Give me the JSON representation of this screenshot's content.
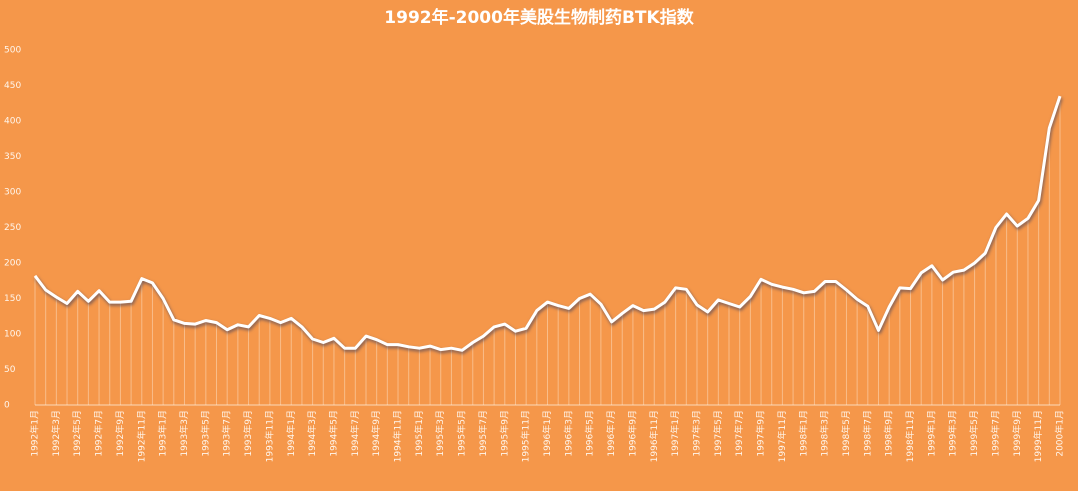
{
  "chart_data": {
    "type": "line",
    "title": "1992年-2000年美股生物制药BTK指数",
    "categories": [
      "1992年1月",
      null,
      "1992年3月",
      null,
      "1992年5月",
      null,
      "1992年7月",
      null,
      "1992年9月",
      null,
      "1992年11月",
      null,
      "1993年1月",
      null,
      "1993年3月",
      null,
      "1993年5月",
      null,
      "1993年7月",
      null,
      "1993年9月",
      null,
      "1993年11月",
      null,
      "1994年1月",
      null,
      "1994年3月",
      null,
      "1994年5月",
      null,
      "1994年7月",
      null,
      "1994年9月",
      null,
      "1994年11月",
      null,
      "1995年1月",
      null,
      "1995年3月",
      null,
      "1995年5月",
      null,
      "1995年7月",
      null,
      "1995年9月",
      null,
      "1995年11月",
      null,
      "1996年1月",
      null,
      "1996年3月",
      null,
      "1996年5月",
      null,
      "1996年7月",
      null,
      "1996年9月",
      null,
      "1996年11月",
      null,
      "1997年1月",
      null,
      "1997年3月",
      null,
      "1997年5月",
      null,
      "1997年7月",
      null,
      "1997年9月",
      null,
      "1997年11月",
      null,
      "1998年1月",
      null,
      "1998年3月",
      null,
      "1998年5月",
      null,
      "1998年7月",
      null,
      "1998年9月",
      null,
      "1998年11月",
      null,
      "1999年1月",
      null,
      "1999年3月",
      null,
      "1999年5月",
      null,
      "1999年7月",
      null,
      "1999年9月",
      null,
      "1999年11月",
      null,
      "2000年1月"
    ],
    "values": [
      182,
      162,
      152,
      143,
      160,
      146,
      161,
      145,
      145,
      146,
      178,
      172,
      150,
      120,
      115,
      114,
      119,
      116,
      106,
      113,
      110,
      126,
      122,
      116,
      122,
      110,
      93,
      88,
      94,
      80,
      80,
      97,
      92,
      85,
      85,
      82,
      80,
      83,
      78,
      80,
      77,
      88,
      97,
      110,
      114,
      104,
      108,
      133,
      145,
      140,
      136,
      150,
      156,
      142,
      117,
      129,
      140,
      133,
      135,
      145,
      165,
      163,
      141,
      131,
      148,
      143,
      138,
      153,
      177,
      170,
      166,
      163,
      158,
      160,
      174,
      174,
      162,
      149,
      139,
      105,
      138,
      165,
      164,
      186,
      196,
      176,
      187,
      190,
      200,
      214,
      250,
      269,
      252,
      263,
      288,
      390,
      435
    ],
    "color": "#ffffff",
    "ylim": [
      0,
      500
    ],
    "yticks": [
      0,
      50,
      100,
      150,
      200,
      250,
      300,
      350,
      400,
      450,
      500
    ]
  }
}
